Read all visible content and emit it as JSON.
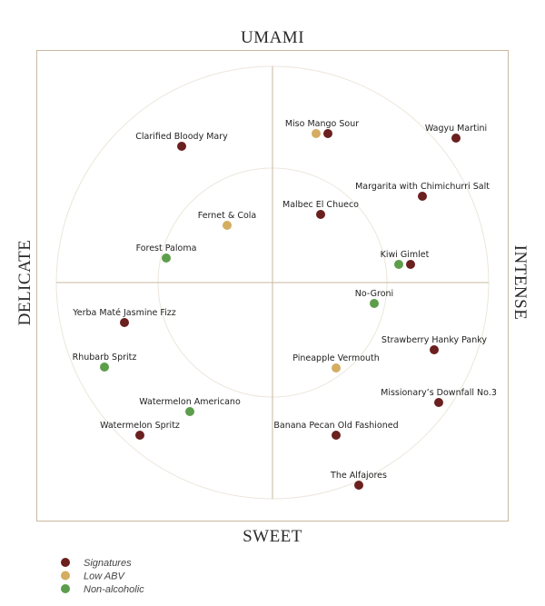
{
  "axes": {
    "top": "UMAMI",
    "bottom": "SWEET",
    "left": "DELICATE",
    "right": "INTENSE"
  },
  "legend": [
    {
      "label": "Signatures",
      "color": "#6b1f1f"
    },
    {
      "label": "Low ABV",
      "color": "#d4ad62"
    },
    {
      "label": "Non-alcoholic",
      "color": "#5c9e4c"
    }
  ],
  "nodes": [
    {
      "label": "Clarified Bloody Mary",
      "kinds": [
        0
      ]
    },
    {
      "label": "Miso Mango Sour",
      "kinds": [
        1,
        0
      ]
    },
    {
      "label": "Wagyu Martini",
      "kinds": [
        0
      ]
    },
    {
      "label": "Margarita with Chimichurri Salt",
      "kinds": [
        0
      ]
    },
    {
      "label": "Malbec El Chueco",
      "kinds": [
        0
      ]
    },
    {
      "label": "Fernet & Cola",
      "kinds": [
        1
      ]
    },
    {
      "label": "Forest Paloma",
      "kinds": [
        2
      ]
    },
    {
      "label": "Kiwi Gimlet",
      "kinds": [
        2,
        0
      ]
    },
    {
      "label": "No-Groni",
      "kinds": [
        2
      ]
    },
    {
      "label": "Yerba Maté Jasmine Fizz",
      "kinds": [
        0
      ]
    },
    {
      "label": "Strawberry Hanky Panky",
      "kinds": [
        0
      ]
    },
    {
      "label": "Rhubarb Spritz",
      "kinds": [
        2
      ]
    },
    {
      "label": "Pineapple Vermouth",
      "kinds": [
        1
      ]
    },
    {
      "label": "Missionary’s Downfall No.3",
      "kinds": [
        0
      ]
    },
    {
      "label": "Watermelon Americano",
      "kinds": [
        2
      ]
    },
    {
      "label": "Watermelon Spritz",
      "kinds": [
        0
      ]
    },
    {
      "label": "Banana Pecan Old Fashioned",
      "kinds": [
        0
      ]
    },
    {
      "label": "The Alfajores",
      "kinds": [
        0
      ]
    }
  ]
}
